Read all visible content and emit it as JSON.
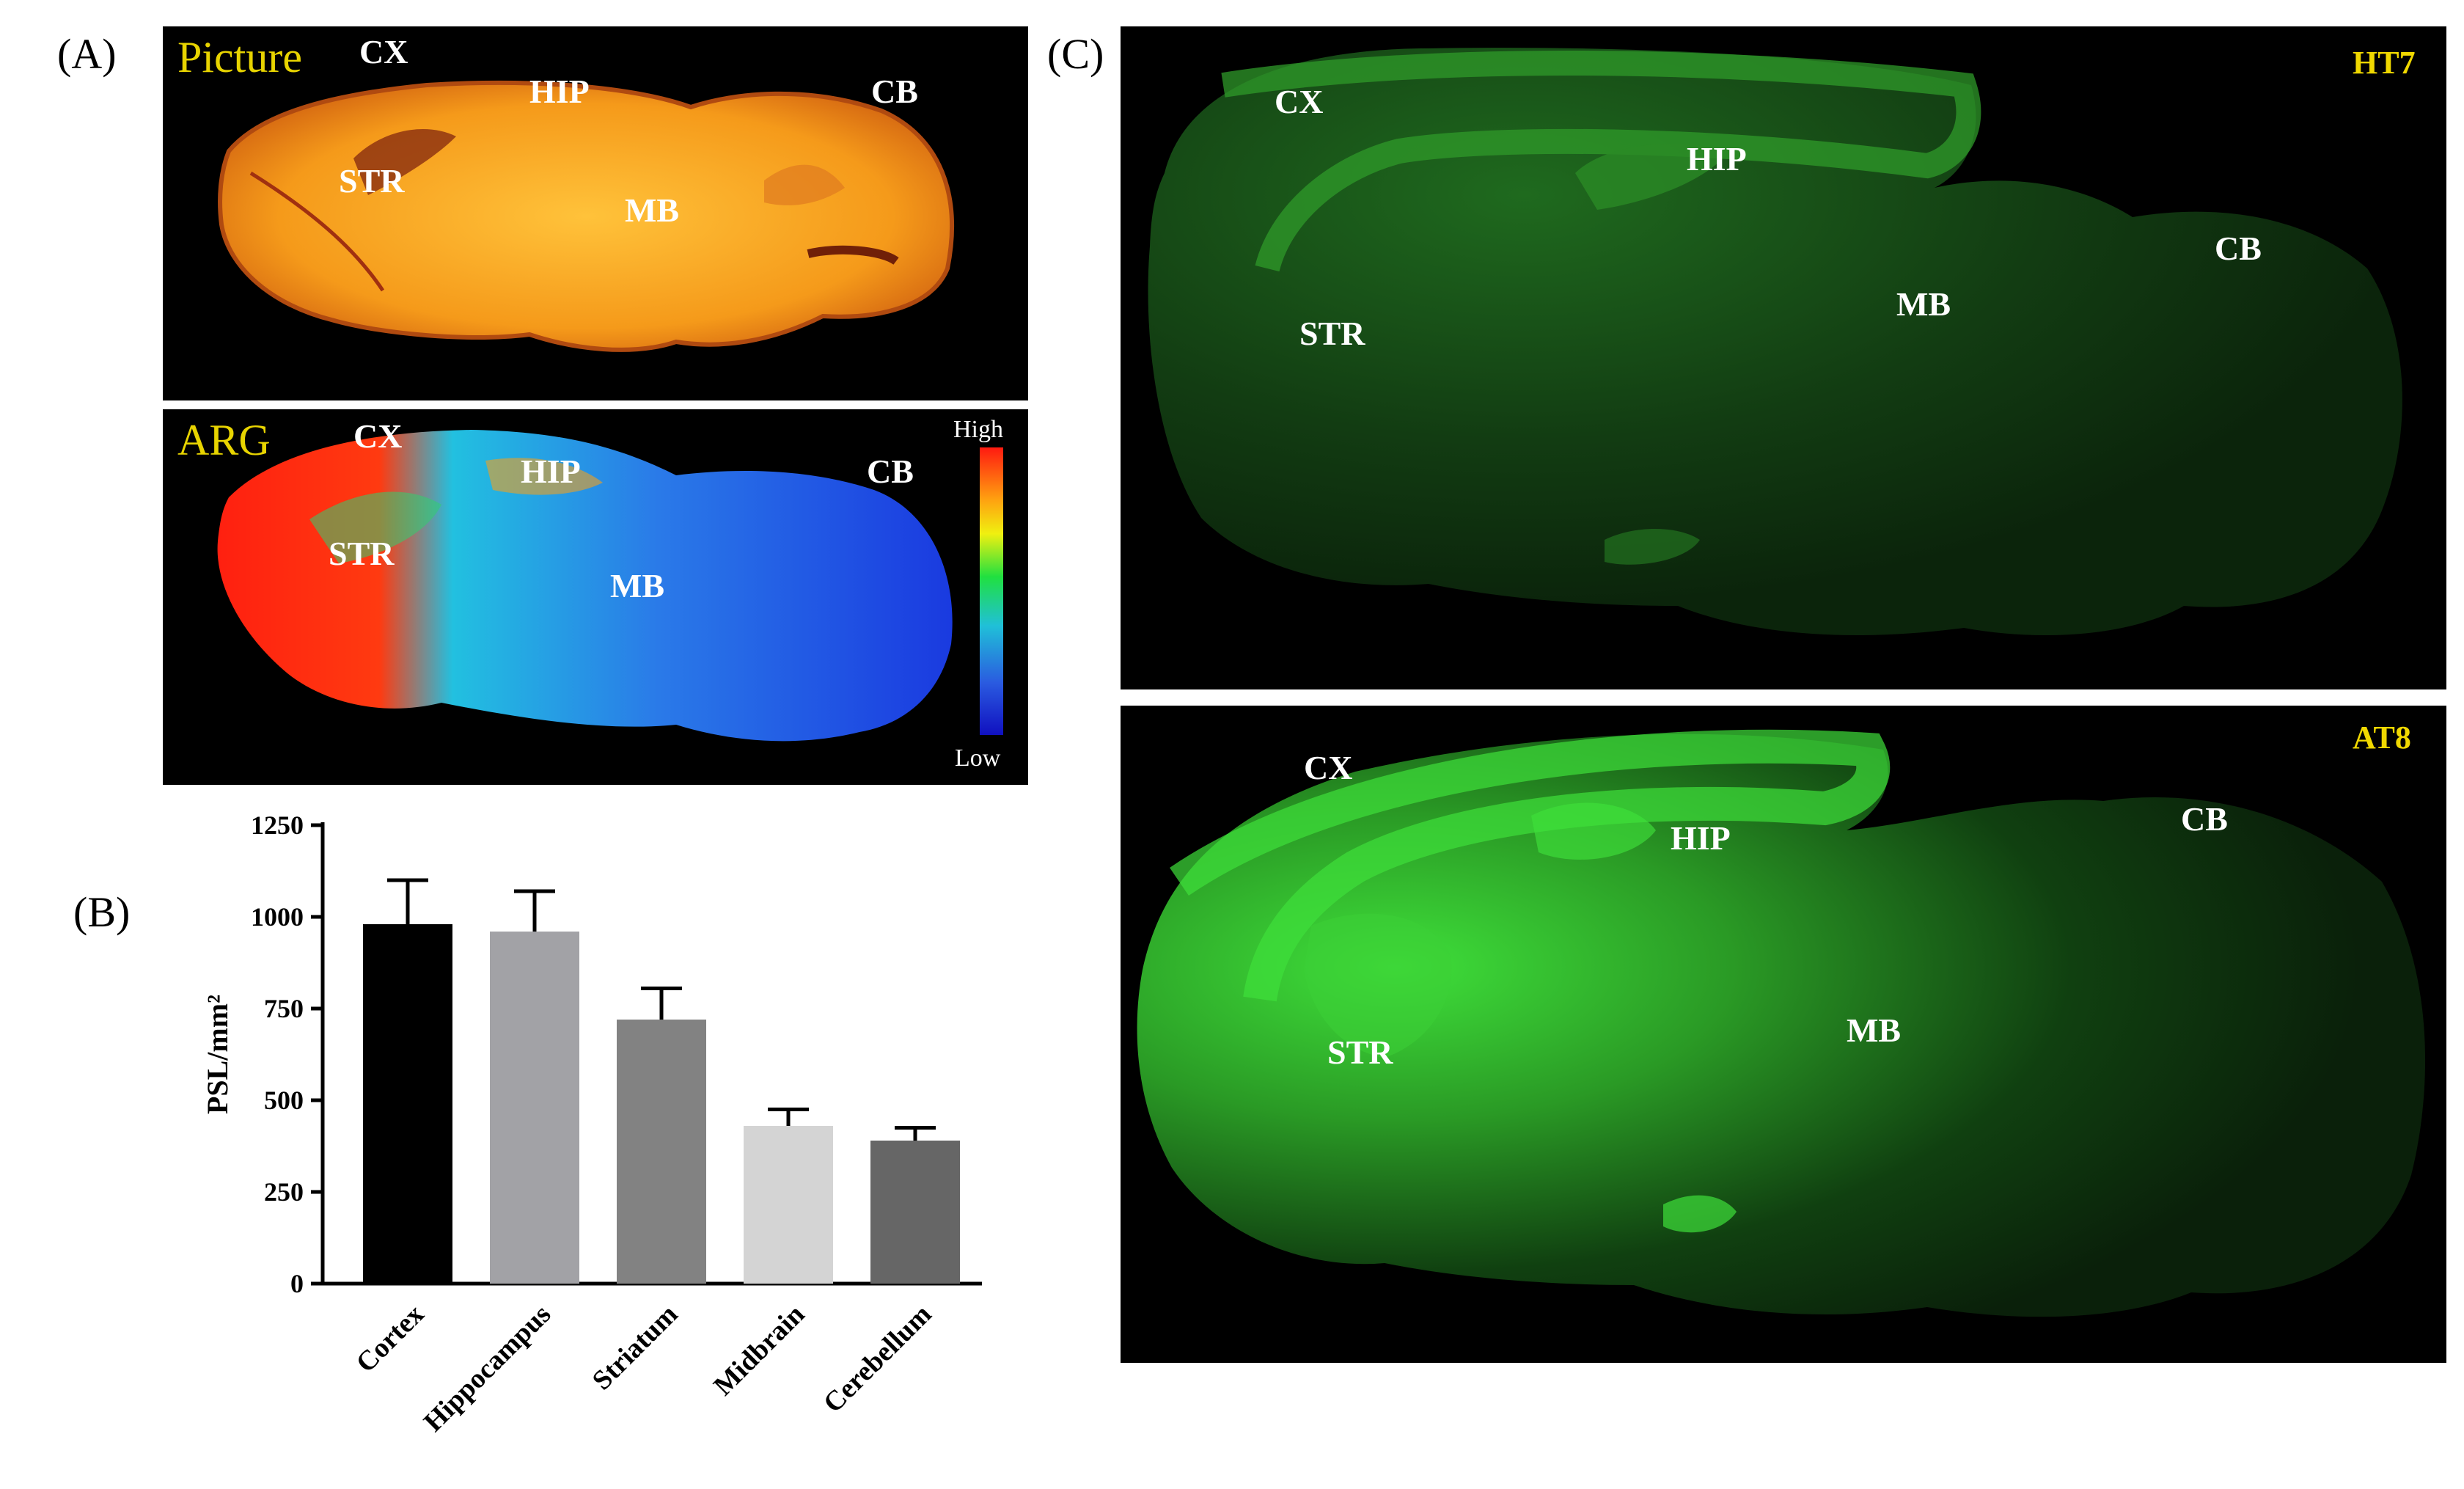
{
  "panels": {
    "a": "(A)",
    "b": "(B)",
    "c": "(C)"
  },
  "picture_panel": {
    "title": "Picture",
    "regions": {
      "cx": "CX",
      "hip": "HIP",
      "cb": "CB",
      "str": "STR",
      "mb": "MB"
    }
  },
  "arg_panel": {
    "title": "ARG",
    "regions": {
      "cx": "CX",
      "hip": "HIP",
      "cb": "CB",
      "str": "STR",
      "mb": "MB"
    },
    "scale_high": "High",
    "scale_low": "Low"
  },
  "ht7_panel": {
    "label": "HT7",
    "regions": {
      "cx": "CX",
      "hip": "HIP",
      "cb": "CB",
      "str": "STR",
      "mb": "MB"
    }
  },
  "at8_panel": {
    "label": "AT8",
    "regions": {
      "cx": "CX",
      "hip": "HIP",
      "cb": "CB",
      "str": "STR",
      "mb": "MB"
    }
  },
  "colors": {
    "bar_fills": [
      "#000000",
      "#a2a2a6",
      "#828282",
      "#d4d4d4",
      "#666666"
    ],
    "green": "#3fe03a",
    "yellow_text": "#e8d400"
  },
  "chart_data": {
    "type": "bar",
    "categories": [
      "Cortex",
      "Hippocampus",
      "Striatum",
      "Midbrain",
      "Cerebellum"
    ],
    "values": [
      980,
      960,
      720,
      430,
      390
    ],
    "errors": [
      120,
      110,
      85,
      45,
      35
    ],
    "ylabel": "PSL/mm²",
    "ylim": [
      0,
      1250
    ],
    "yticks": [
      0,
      250,
      500,
      750,
      1000,
      1250
    ],
    "grid": false
  }
}
